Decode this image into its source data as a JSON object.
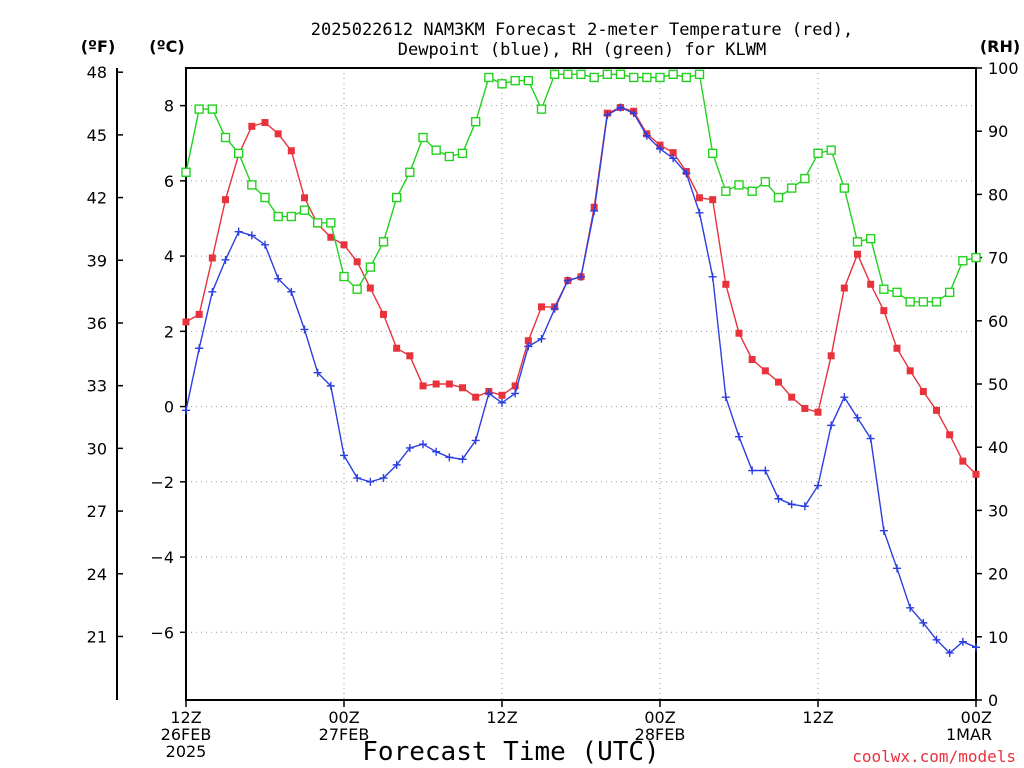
{
  "chart_data": {
    "type": "line",
    "title": [
      "2025022612 NAM3KM Forecast 2-meter Temperature (red),",
      "Dewpoint (blue), RH (green) for KLWM"
    ],
    "xlabel": "Forecast Time (UTC)",
    "units": {
      "left_f": "(ºF)",
      "left_c": "(ºC)",
      "right": "(RH)"
    },
    "x_ticks": [
      {
        "hour": 0,
        "lines": [
          "12Z",
          "26FEB",
          "2025"
        ]
      },
      {
        "hour": 12,
        "lines": [
          "00Z",
          "27FEB"
        ]
      },
      {
        "hour": 24,
        "lines": [
          "12Z"
        ]
      },
      {
        "hour": 36,
        "lines": [
          "00Z",
          "28FEB"
        ]
      },
      {
        "hour": 48,
        "lines": [
          "12Z"
        ]
      },
      {
        "hour": 60,
        "lines": [
          "00Z",
          "1MAR"
        ]
      }
    ],
    "x_unit": "hours since 12Z 26FEB 2025",
    "xlim": [
      0,
      60
    ],
    "ylim_c": [
      -7.8,
      9.0
    ],
    "ylim_rh": [
      0,
      100
    ],
    "y_ticks_c": [
      -6,
      -4,
      -2,
      0,
      2,
      4,
      6,
      8
    ],
    "y_ticks_f": [
      21,
      24,
      27,
      30,
      33,
      36,
      39,
      42,
      45,
      48
    ],
    "y_ticks_rh": [
      0,
      10,
      20,
      30,
      40,
      50,
      60,
      70,
      80,
      90,
      100
    ],
    "grid": true,
    "series": [
      {
        "name": "2-meter Temperature",
        "unit": "C",
        "color": "#e8323c",
        "marker": "filled-square",
        "x": [
          0,
          1,
          2,
          3,
          4,
          5,
          6,
          7,
          8,
          9,
          10,
          11,
          12,
          13,
          14,
          15,
          16,
          17,
          18,
          19,
          20,
          21,
          22,
          23,
          24,
          25,
          26,
          27,
          28,
          29,
          30,
          31,
          32,
          33,
          34,
          35,
          36,
          37,
          38,
          39,
          40,
          41,
          42,
          43,
          44,
          45,
          46,
          47,
          48,
          49,
          50,
          51,
          52,
          53,
          54,
          55,
          56,
          57,
          58,
          59,
          60
        ],
        "values": [
          2.25,
          2.45,
          3.95,
          5.5,
          6.7,
          7.45,
          7.55,
          7.25,
          6.8,
          5.55,
          4.85,
          4.5,
          4.3,
          3.85,
          3.15,
          2.45,
          1.55,
          1.35,
          0.55,
          0.6,
          0.6,
          0.5,
          0.25,
          0.4,
          0.3,
          0.55,
          1.75,
          2.65,
          2.65,
          3.35,
          3.45,
          5.3,
          7.8,
          7.95,
          7.85,
          7.25,
          6.95,
          6.75,
          6.25,
          5.55,
          5.5,
          3.25,
          1.95,
          1.25,
          0.95,
          0.65,
          0.25,
          -0.05,
          -0.15,
          1.35,
          3.15,
          4.05,
          3.25,
          2.55,
          1.55,
          0.95,
          0.4,
          -0.1,
          -0.75,
          -1.45,
          -1.8
        ]
      },
      {
        "name": "Dewpoint",
        "unit": "C",
        "color": "#2b3fe0",
        "marker": "plus",
        "x": [
          0,
          1,
          2,
          3,
          4,
          5,
          6,
          7,
          8,
          9,
          10,
          11,
          12,
          13,
          14,
          15,
          16,
          17,
          18,
          19,
          20,
          21,
          22,
          23,
          24,
          25,
          26,
          27,
          28,
          29,
          30,
          31,
          32,
          33,
          34,
          35,
          36,
          37,
          38,
          39,
          40,
          41,
          42,
          43,
          44,
          45,
          46,
          47,
          48,
          49,
          50,
          51,
          52,
          53,
          54,
          55,
          56,
          57,
          58,
          59,
          60
        ],
        "values": [
          -0.1,
          1.55,
          3.05,
          3.9,
          4.65,
          4.55,
          4.3,
          3.4,
          3.05,
          2.05,
          0.9,
          0.55,
          -1.3,
          -1.9,
          -2.0,
          -1.9,
          -1.55,
          -1.1,
          -1.0,
          -1.2,
          -1.35,
          -1.4,
          -0.9,
          0.35,
          0.1,
          0.35,
          1.6,
          1.8,
          2.6,
          3.35,
          3.45,
          5.2,
          7.75,
          7.95,
          7.8,
          7.2,
          6.85,
          6.6,
          6.2,
          5.15,
          3.45,
          0.25,
          -0.8,
          -1.7,
          -1.7,
          -2.45,
          -2.6,
          -2.65,
          -2.1,
          -0.5,
          0.25,
          -0.3,
          -0.85,
          -3.3,
          -4.3,
          -5.35,
          -5.75,
          -6.2,
          -6.55,
          -6.25,
          -6.4
        ]
      },
      {
        "name": "RH",
        "unit": "%",
        "color": "#23d21e",
        "marker": "open-square",
        "x": [
          0,
          1,
          2,
          3,
          4,
          5,
          6,
          7,
          8,
          9,
          10,
          11,
          12,
          13,
          14,
          15,
          16,
          17,
          18,
          19,
          20,
          21,
          22,
          23,
          24,
          25,
          26,
          27,
          28,
          29,
          30,
          31,
          32,
          33,
          34,
          35,
          36,
          37,
          38,
          39,
          40,
          41,
          42,
          43,
          44,
          45,
          46,
          47,
          48,
          49,
          50,
          51,
          52,
          53,
          54,
          55,
          56,
          57,
          58,
          59,
          60
        ],
        "values": [
          83.5,
          93.5,
          93.5,
          89,
          86.5,
          81.5,
          79.5,
          76.5,
          76.5,
          77.5,
          75.5,
          75.5,
          67,
          65,
          68.5,
          72.5,
          79.5,
          83.5,
          89,
          87,
          86,
          86.5,
          91.5,
          98.5,
          97.5,
          98,
          98,
          93.5,
          99,
          99,
          99,
          98.5,
          99,
          99,
          98.5,
          98.5,
          98.5,
          99,
          98.5,
          99,
          86.5,
          80.5,
          81.5,
          80.5,
          82,
          79.5,
          81,
          82.5,
          86.5,
          87,
          81,
          72.5,
          73,
          65,
          64.5,
          63,
          63,
          63,
          64.5,
          69.5,
          70
        ]
      }
    ],
    "credit": "coolwx.com/models"
  }
}
